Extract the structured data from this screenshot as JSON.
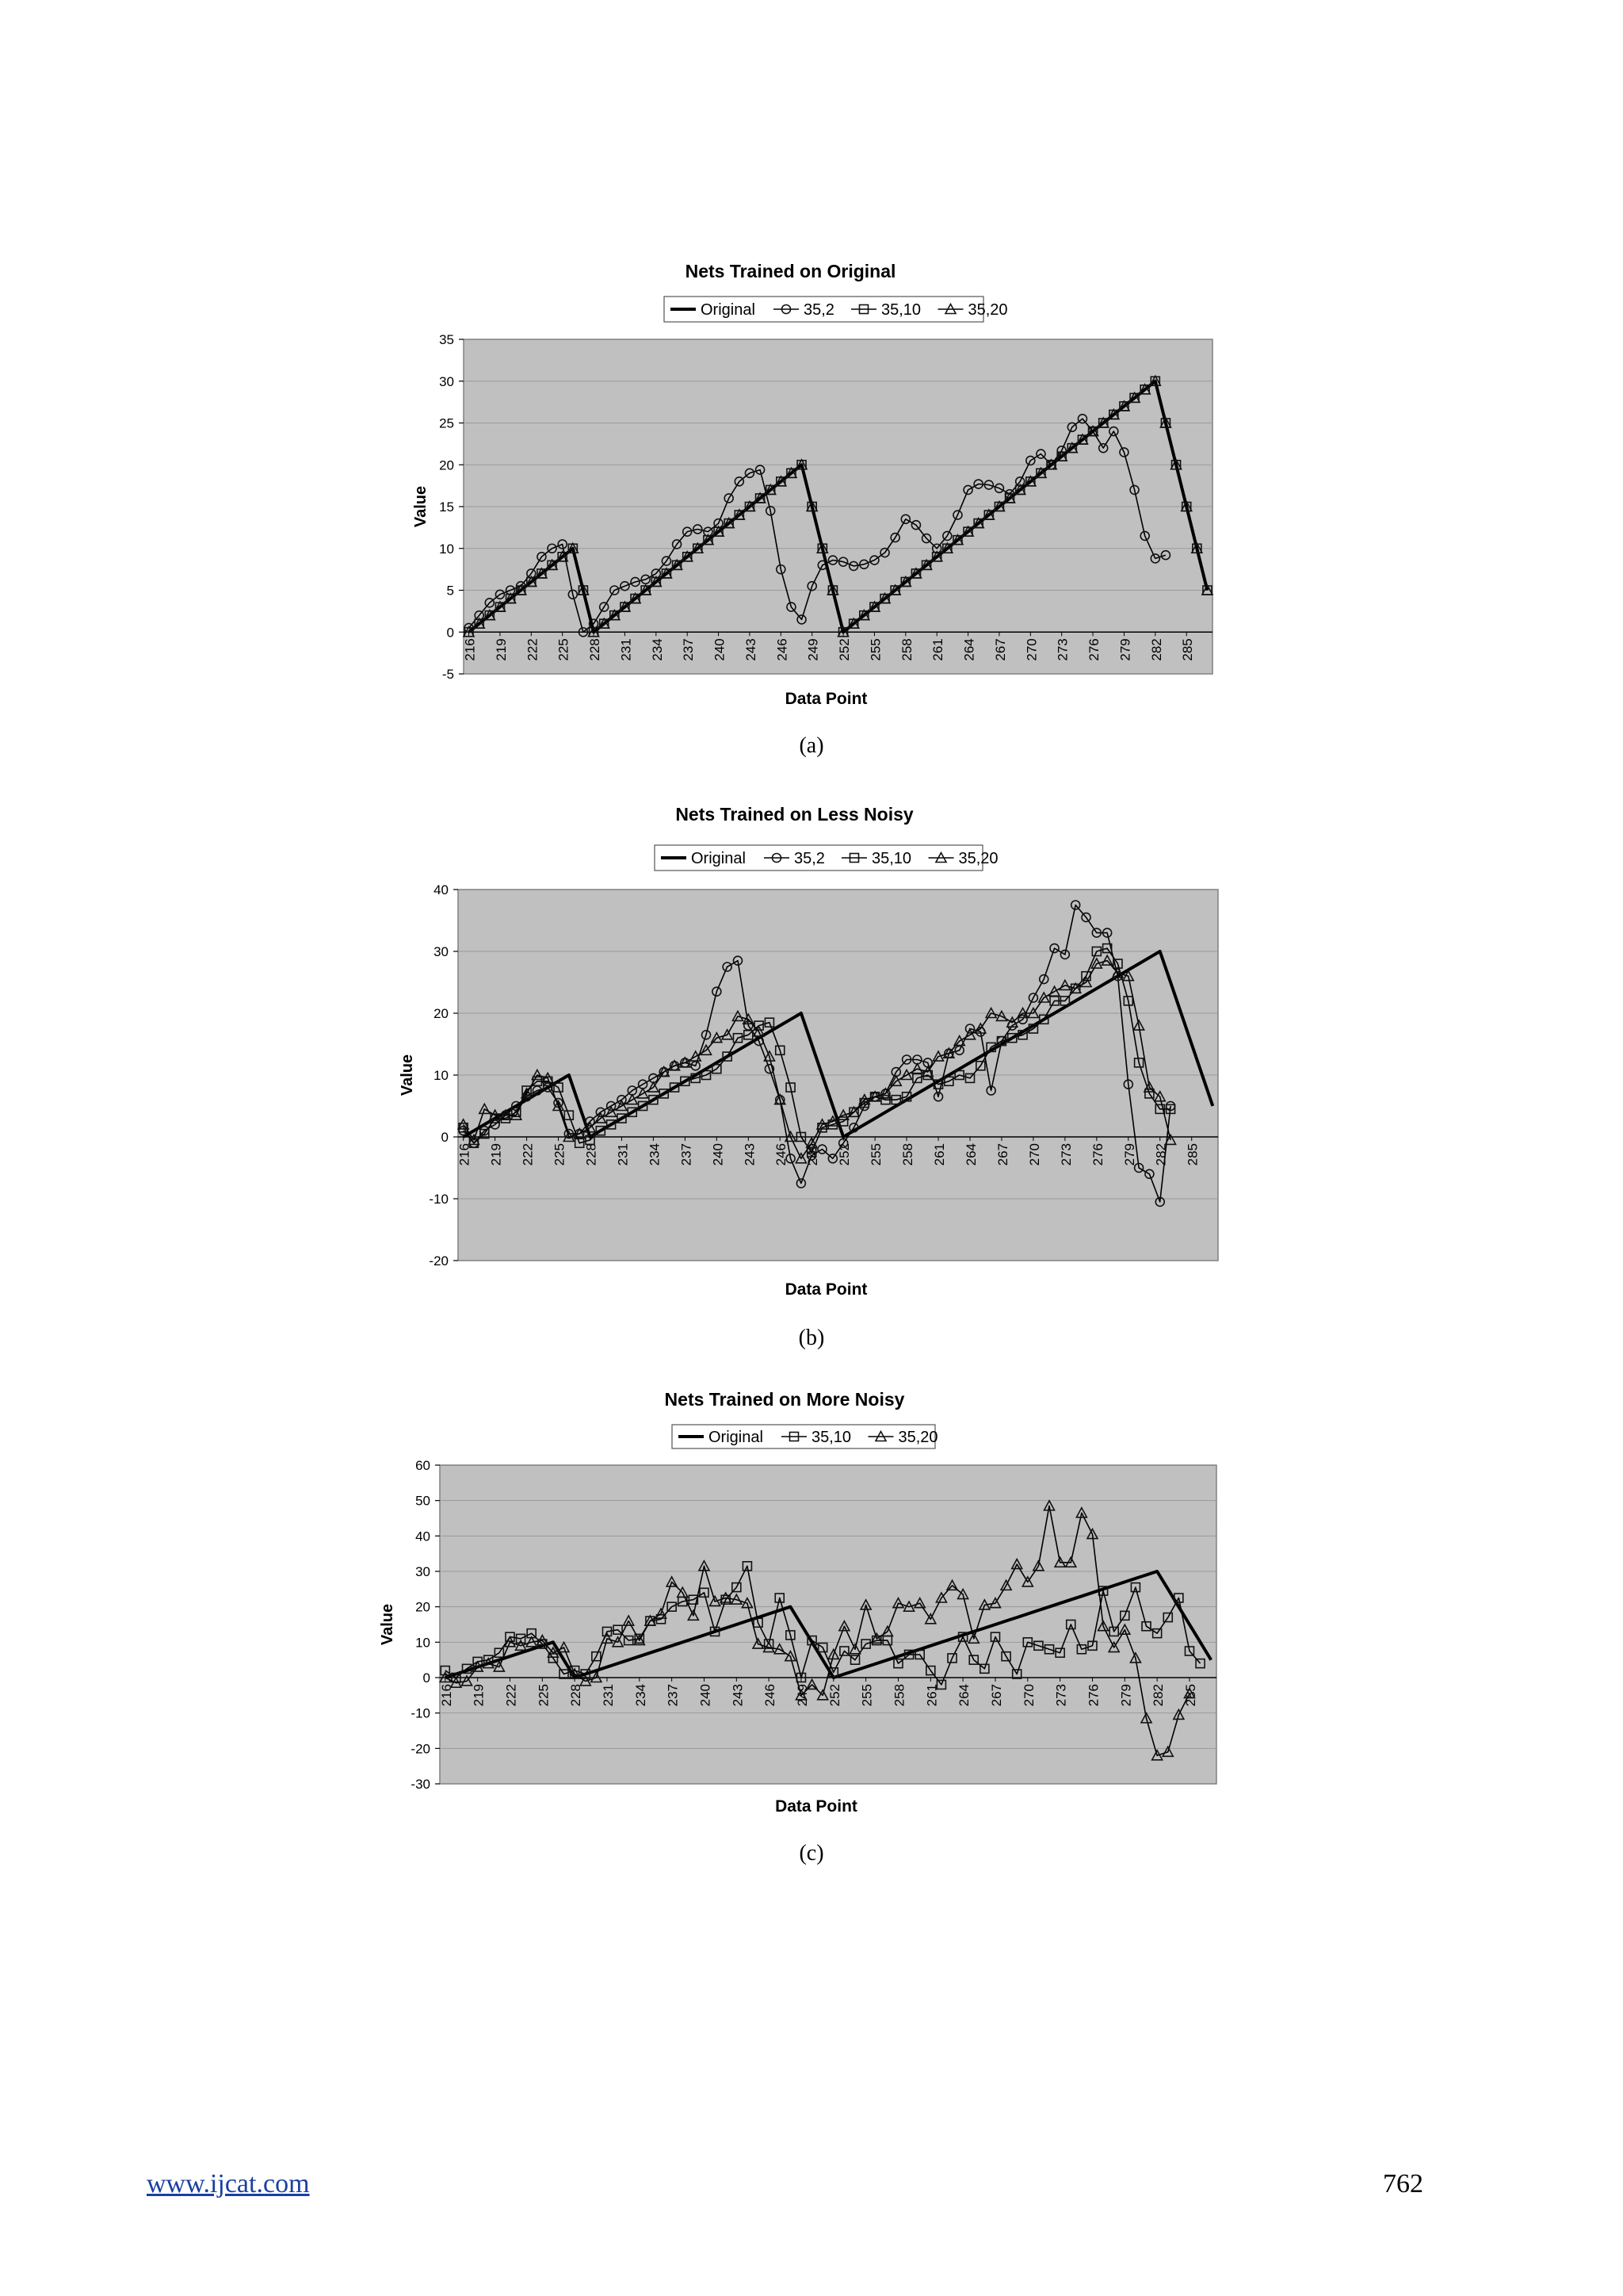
{
  "page": {
    "footer_link": "www.ijcat.com",
    "page_number": "762"
  },
  "chart_data": [
    {
      "type": "line",
      "title": "Nets Trained on Original",
      "xlabel": "Data Point",
      "ylabel": "Value",
      "caption": "(a)",
      "ylim": [
        -5,
        35
      ],
      "yticks": [
        -5,
        0,
        5,
        10,
        15,
        20,
        25,
        30,
        35
      ],
      "x_start": 216,
      "xtick_labels": [
        "216",
        "219",
        "222",
        "225",
        "228",
        "231",
        "234",
        "237",
        "240",
        "243",
        "246",
        "249",
        "252",
        "255",
        "258",
        "261",
        "264",
        "267",
        "270",
        "273",
        "276",
        "279",
        "282",
        "285"
      ],
      "grid": true,
      "legend": "top-center",
      "series": [
        {
          "name": "Original",
          "marker": "none",
          "values": [
            0,
            1,
            2,
            3,
            4,
            5,
            6,
            7,
            8,
            9,
            10,
            5,
            0,
            1,
            2,
            3,
            4,
            5,
            6,
            7,
            8,
            9,
            10,
            11,
            12,
            13,
            14,
            15,
            16,
            17,
            18,
            19,
            20,
            15,
            10,
            5,
            0,
            1,
            2,
            3,
            4,
            5,
            6,
            7,
            8,
            9,
            10,
            11,
            12,
            13,
            14,
            15,
            16,
            17,
            18,
            19,
            20,
            21,
            22,
            23,
            24,
            25,
            26,
            27,
            28,
            29,
            30,
            25,
            20,
            15,
            10,
            5
          ]
        },
        {
          "name": "35,2",
          "marker": "circle",
          "values": [
            0.5,
            2,
            3.5,
            4.5,
            5,
            5.5,
            7,
            9,
            10,
            10.5,
            4.5,
            0,
            1,
            3,
            5,
            5.5,
            6,
            6.3,
            7,
            8.5,
            10.5,
            12,
            12.3,
            12,
            13,
            16,
            18,
            19,
            19.4,
            14.5,
            7.5,
            3,
            1.5,
            5.5,
            8,
            8.6,
            8.4,
            7.9,
            8.1,
            8.6,
            9.5,
            11.3,
            13.5,
            12.8,
            11.2,
            10,
            11.5,
            14,
            17,
            17.7,
            17.6,
            17.2,
            16.5,
            18,
            20.5,
            21.3,
            20,
            21.7,
            24.5,
            25.5,
            24,
            22,
            24,
            21.5,
            17,
            11.5,
            8.8,
            9.2
          ]
        },
        {
          "name": "35,10",
          "marker": "square",
          "values": [
            0,
            1,
            2,
            3,
            4,
            5,
            6,
            7,
            8,
            9,
            10,
            5,
            0,
            1,
            2,
            3,
            4,
            5,
            6,
            7,
            8,
            9,
            10,
            11,
            12,
            13,
            14,
            15,
            16,
            17,
            18,
            19,
            20,
            15,
            10,
            5,
            0,
            1,
            2,
            3,
            4,
            5,
            6,
            7,
            8,
            9,
            10,
            11,
            12,
            13,
            14,
            15,
            16,
            17,
            18,
            19,
            20,
            21,
            22,
            23,
            24,
            25,
            26,
            27,
            28,
            29,
            30,
            25,
            20,
            15,
            10,
            5
          ]
        },
        {
          "name": "35,20",
          "marker": "triangle",
          "values": [
            0,
            1,
            2,
            3,
            4,
            5,
            6,
            7,
            8,
            9,
            10,
            5,
            0,
            1,
            2,
            3,
            4,
            5,
            6,
            7,
            8,
            9,
            10,
            11,
            12,
            13,
            14,
            15,
            16,
            17,
            18,
            19,
            20,
            15,
            10,
            5,
            0,
            1,
            2,
            3,
            4,
            5,
            6,
            7,
            8,
            9,
            10,
            11,
            12,
            13,
            14,
            15,
            16,
            17,
            18,
            19,
            20,
            21,
            22,
            23,
            24,
            25,
            26,
            27,
            28,
            29,
            30,
            25,
            20,
            15,
            10,
            5
          ]
        }
      ]
    },
    {
      "type": "line",
      "title": "Nets Trained on Less Noisy",
      "xlabel": "Data Point",
      "ylabel": "Value",
      "caption": "(b)",
      "ylim": [
        -20,
        40
      ],
      "yticks": [
        -20,
        -10,
        0,
        10,
        20,
        30,
        40
      ],
      "x_start": 216,
      "xtick_labels": [
        "216",
        "219",
        "222",
        "225",
        "228",
        "231",
        "234",
        "237",
        "240",
        "243",
        "246",
        "249",
        "252",
        "255",
        "258",
        "261",
        "264",
        "267",
        "270",
        "273",
        "276",
        "279",
        "282",
        "285"
      ],
      "grid": true,
      "legend": "top-center",
      "series": [
        {
          "name": "Original",
          "marker": "none",
          "values": [
            0,
            1,
            2,
            3,
            4,
            5,
            6,
            7,
            8,
            9,
            10,
            5,
            0,
            1,
            2,
            3,
            4,
            5,
            6,
            7,
            8,
            9,
            10,
            11,
            12,
            13,
            14,
            15,
            16,
            17,
            18,
            19,
            20,
            15,
            10,
            5,
            0,
            1,
            2,
            3,
            4,
            5,
            6,
            7,
            8,
            9,
            10,
            11,
            12,
            13,
            14,
            15,
            16,
            17,
            18,
            19,
            20,
            21,
            22,
            23,
            24,
            25,
            26,
            27,
            28,
            29,
            30,
            25,
            20,
            15,
            10,
            5
          ]
        },
        {
          "name": "35,2",
          "marker": "circle",
          "values": [
            1,
            -1,
            1,
            2,
            3.5,
            5,
            6.5,
            7.5,
            8,
            5.5,
            0.5,
            0.5,
            2.5,
            4,
            5,
            6,
            7.5,
            8.5,
            9.5,
            10.5,
            11.5,
            12,
            11.5,
            16.5,
            23.5,
            27.5,
            28.5,
            18,
            15.5,
            11,
            6,
            -3.5,
            -7.5,
            -3,
            -2,
            -3.5,
            -1,
            1.5,
            5,
            6.5,
            7,
            10.5,
            12.5,
            12.5,
            12,
            6.5,
            13.5,
            14,
            17.5,
            17,
            7.5,
            15.5,
            18,
            19,
            22.5,
            25.5,
            30.5,
            29.5,
            37.5,
            35.5,
            33,
            33,
            26,
            8.5,
            -5,
            -6,
            -10.5,
            5
          ]
        },
        {
          "name": "35,10",
          "marker": "square",
          "values": [
            1.5,
            -1,
            0.5,
            3,
            3,
            4,
            7.5,
            9,
            9,
            8,
            3.5,
            -1,
            -0.5,
            1,
            2,
            3,
            4,
            5,
            6,
            7,
            8,
            9,
            9.5,
            10,
            11,
            13,
            16,
            16.5,
            18,
            18.5,
            14,
            8,
            0,
            -2.5,
            1.5,
            2,
            2.5,
            4,
            5.5,
            6.5,
            6,
            6,
            6.5,
            9.5,
            10,
            8.5,
            9,
            10,
            9.5,
            11.5,
            14.5,
            15.5,
            16,
            16.5,
            17.5,
            19,
            22,
            22,
            24,
            26,
            30,
            30.5,
            28,
            22,
            12,
            7,
            4.5,
            4.5
          ]
        },
        {
          "name": "35,20",
          "marker": "triangle",
          "values": [
            2,
            -0.5,
            4.5,
            3.5,
            3.5,
            3.5,
            7,
            10,
            9.5,
            5,
            0,
            0.5,
            1.5,
            3,
            4,
            5,
            6,
            7,
            8,
            10.5,
            11.5,
            12,
            13,
            14,
            16,
            16.5,
            19.5,
            19,
            17,
            13,
            6,
            0,
            -3.5,
            -1,
            2,
            2.5,
            3.5,
            4,
            6,
            6.5,
            7,
            9,
            10,
            11,
            10.5,
            13,
            13.5,
            15.5,
            16.5,
            17.5,
            20,
            19.5,
            18.5,
            20,
            20,
            22.5,
            23.5,
            24.5,
            24,
            25,
            28,
            28.5,
            26.5,
            26,
            18,
            8,
            6.5,
            -0.5
          ]
        }
      ]
    },
    {
      "type": "line",
      "title": "Nets Trained on More Noisy",
      "xlabel": "Data Point",
      "ylabel": "Value",
      "caption": "(c)",
      "ylim": [
        -30,
        60
      ],
      "yticks": [
        -30,
        -20,
        -10,
        0,
        10,
        20,
        30,
        40,
        50,
        60
      ],
      "x_start": 216,
      "xtick_labels": [
        "216",
        "219",
        "222",
        "225",
        "228",
        "231",
        "234",
        "237",
        "240",
        "243",
        "246",
        "249",
        "252",
        "255",
        "258",
        "261",
        "264",
        "267",
        "270",
        "273",
        "276",
        "279",
        "282",
        "285"
      ],
      "grid": true,
      "legend": "top-center",
      "series": [
        {
          "name": "Original",
          "marker": "none",
          "values": [
            0,
            1,
            2,
            3,
            4,
            5,
            6,
            7,
            8,
            9,
            10,
            5,
            0,
            1,
            2,
            3,
            4,
            5,
            6,
            7,
            8,
            9,
            10,
            11,
            12,
            13,
            14,
            15,
            16,
            17,
            18,
            19,
            20,
            15,
            10,
            5,
            0,
            1,
            2,
            3,
            4,
            5,
            6,
            7,
            8,
            9,
            10,
            11,
            12,
            13,
            14,
            15,
            16,
            17,
            18,
            19,
            20,
            21,
            22,
            23,
            24,
            25,
            26,
            27,
            28,
            29,
            30,
            25,
            20,
            15,
            10,
            5
          ]
        },
        {
          "name": "35,10",
          "marker": "square",
          "values": [
            2,
            0,
            2.5,
            4.5,
            5,
            7,
            11.5,
            11,
            12.5,
            9.5,
            5.5,
            1,
            2,
            1,
            6,
            13,
            13.5,
            10.5,
            11,
            16,
            16.5,
            20,
            21.5,
            22,
            24,
            13,
            22,
            25.5,
            31.5,
            15.5,
            9.5,
            22.5,
            12,
            0,
            10.5,
            8.5,
            1.5,
            7.5,
            5,
            9.5,
            10.5,
            10.5,
            4,
            6.5,
            6.5,
            2,
            -2,
            5.5,
            11.5,
            5,
            2.5,
            11.5,
            6,
            1,
            10,
            9,
            8,
            7,
            15,
            8,
            9,
            24.5,
            13,
            17.5,
            25.5,
            14.5,
            12.5,
            17,
            22.5,
            7.5,
            4
          ]
        },
        {
          "name": "35,20",
          "marker": "triangle",
          "values": [
            0,
            -1.5,
            -1,
            3,
            4,
            3,
            10,
            9,
            10,
            10.5,
            7,
            8.5,
            1,
            -1,
            0,
            11,
            10,
            16,
            10.5,
            16,
            18,
            27,
            24,
            17.5,
            31.5,
            21.5,
            22.5,
            22,
            21,
            9.5,
            8.5,
            8,
            6,
            -5,
            -2,
            -5,
            6.5,
            14.5,
            8,
            20.5,
            11,
            13,
            21,
            20,
            21,
            16.5,
            22.5,
            26,
            23.5,
            11,
            20.5,
            21,
            26,
            32,
            27,
            31.5,
            48.5,
            32.5,
            32.5,
            46.5,
            40.5,
            14.5,
            8.5,
            13.5,
            5.5,
            -11.5,
            -22,
            -21,
            -10.5,
            -4.5
          ]
        }
      ]
    }
  ]
}
